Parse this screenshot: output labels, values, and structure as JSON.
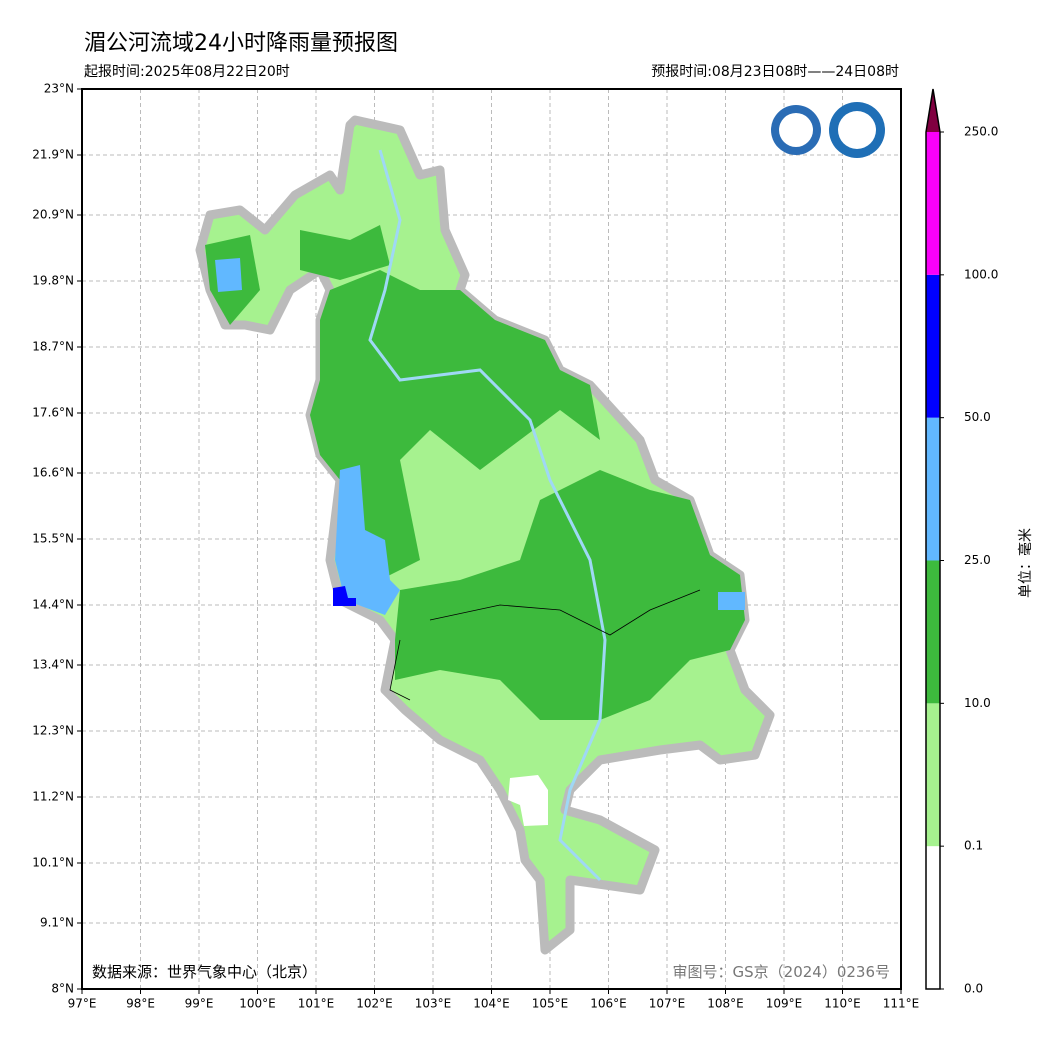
{
  "header": {
    "title": "湄公河流域24小时降雨量预报图",
    "issue_time": "起报时间:2025年08月22日20时",
    "forecast_period": "预报时间:08月23日08时——24日08时"
  },
  "map": {
    "xlim": [
      97,
      111
    ],
    "ylim": [
      8,
      23
    ],
    "xticks": [
      {
        "value": 97,
        "label": "97°E"
      },
      {
        "value": 98,
        "label": "98°E"
      },
      {
        "value": 99,
        "label": "99°E"
      },
      {
        "value": 100,
        "label": "100°E"
      },
      {
        "value": 101,
        "label": "101°E"
      },
      {
        "value": 102,
        "label": "102°E"
      },
      {
        "value": 103,
        "label": "103°E"
      },
      {
        "value": 104,
        "label": "104°E"
      },
      {
        "value": 105,
        "label": "105°E"
      },
      {
        "value": 106,
        "label": "106°E"
      },
      {
        "value": 107,
        "label": "107°E"
      },
      {
        "value": 108,
        "label": "108°E"
      },
      {
        "value": 109,
        "label": "109°E"
      },
      {
        "value": 110,
        "label": "110°E"
      },
      {
        "value": 111,
        "label": "111°E"
      }
    ],
    "yticks": [
      {
        "value": 8,
        "label": "8°N"
      },
      {
        "value": 9.1,
        "label": "9.1°N"
      },
      {
        "value": 10.1,
        "label": "10.1°N"
      },
      {
        "value": 11.2,
        "label": "11.2°N"
      },
      {
        "value": 12.3,
        "label": "12.3°N"
      },
      {
        "value": 13.4,
        "label": "13.4°N"
      },
      {
        "value": 14.4,
        "label": "14.4°N"
      },
      {
        "value": 15.5,
        "label": "15.5°N"
      },
      {
        "value": 16.6,
        "label": "16.6°N"
      },
      {
        "value": 17.6,
        "label": "17.6°N"
      },
      {
        "value": 18.7,
        "label": "18.7°N"
      },
      {
        "value": 19.8,
        "label": "19.8°N"
      },
      {
        "value": 20.9,
        "label": "20.9°N"
      },
      {
        "value": 21.9,
        "label": "21.9°N"
      },
      {
        "value": 23,
        "label": "23°N"
      }
    ],
    "grid": true
  },
  "colorbar": {
    "levels": [
      "0.0",
      "0.1",
      "10.0",
      "25.0",
      "50.0",
      "100.0",
      "250.0"
    ],
    "colors": [
      "#ffffff",
      "#a6f28f",
      "#3dba3d",
      "#61b8ff",
      "#0000ff",
      "#fa00fa"
    ],
    "extend_color": "#800040",
    "unit": "单位：毫米"
  },
  "footer": {
    "source": "数据来源：世界气象中心（北京）",
    "approval": "审图号：GS京（2024）0236号"
  }
}
